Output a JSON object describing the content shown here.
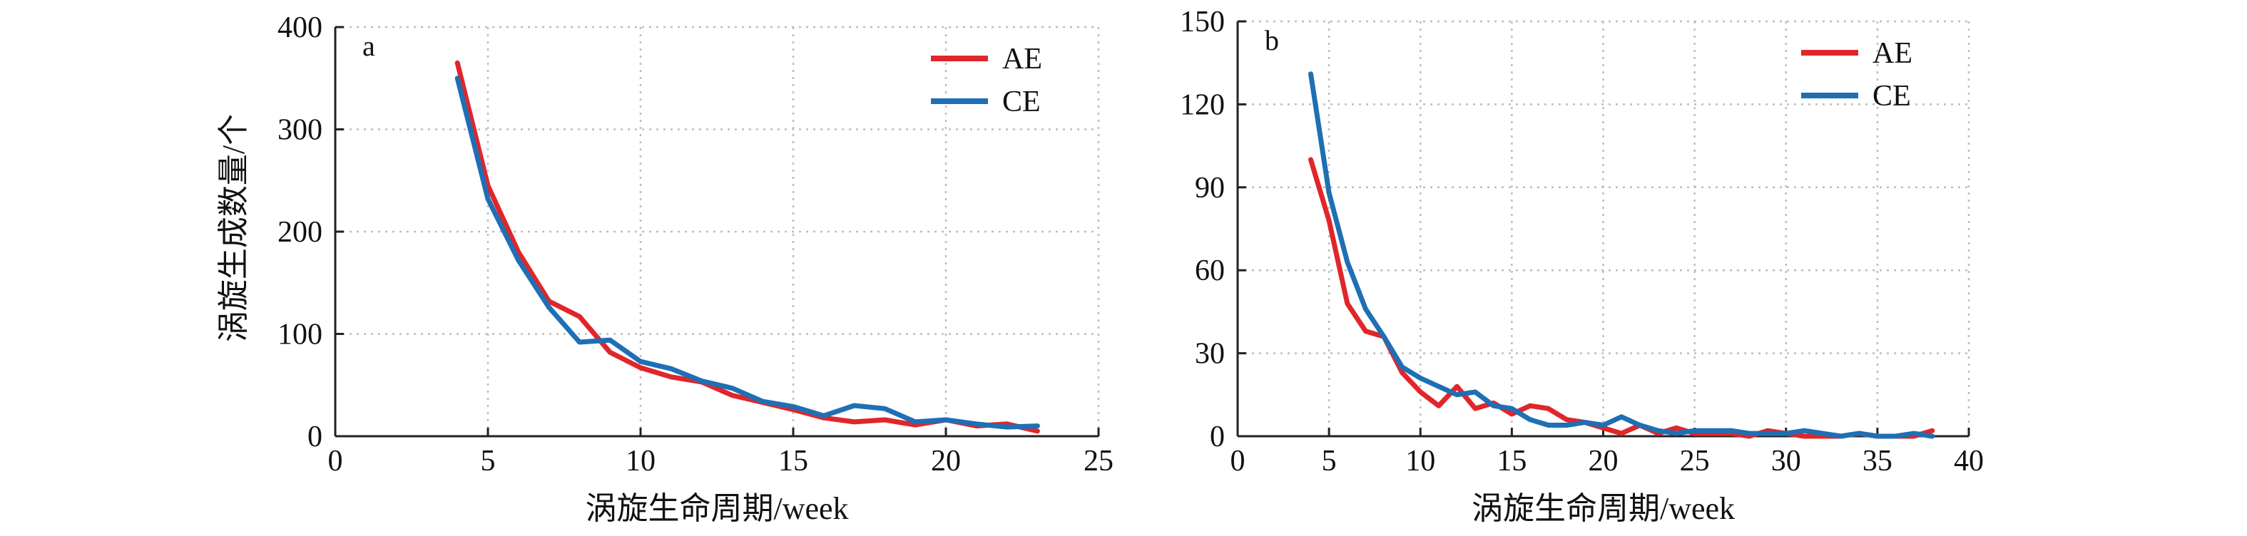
{
  "y_axis_title": "涡旋生成数量/个",
  "chart_data": [
    {
      "type": "line",
      "panel_label": "a",
      "xlabel": "涡旋生命周期/week",
      "xlim": [
        0,
        25
      ],
      "ylim": [
        0,
        400
      ],
      "xticks": [
        0,
        5,
        10,
        15,
        20,
        25
      ],
      "yticks": [
        0,
        100,
        200,
        300,
        400
      ],
      "grid": true,
      "legend_position": "top-right",
      "series": [
        {
          "name": "AE",
          "color": "#e0262a",
          "x": [
            4,
            5,
            6,
            7,
            8,
            9,
            10,
            11,
            12,
            13,
            14,
            15,
            16,
            17,
            18,
            19,
            20,
            21,
            22,
            23
          ],
          "y": [
            365,
            245,
            180,
            132,
            117,
            82,
            67,
            58,
            53,
            40,
            33,
            26,
            18,
            14,
            16,
            11,
            16,
            10,
            12,
            5
          ]
        },
        {
          "name": "CE",
          "color": "#1f6fb4",
          "x": [
            4,
            5,
            6,
            7,
            8,
            9,
            10,
            11,
            12,
            13,
            14,
            15,
            16,
            17,
            18,
            19,
            20,
            21,
            22,
            23
          ],
          "y": [
            350,
            232,
            172,
            126,
            92,
            94,
            73,
            66,
            54,
            47,
            34,
            29,
            20,
            30,
            27,
            14,
            16,
            12,
            9,
            10
          ]
        }
      ]
    },
    {
      "type": "line",
      "panel_label": "b",
      "xlabel": "涡旋生命周期/week",
      "xlim": [
        0,
        40
      ],
      "ylim": [
        0,
        150
      ],
      "xticks": [
        0,
        5,
        10,
        15,
        20,
        25,
        30,
        35,
        40
      ],
      "yticks": [
        0,
        30,
        60,
        90,
        120,
        150
      ],
      "grid": true,
      "legend_position": "top-right",
      "series": [
        {
          "name": "AE",
          "color": "#e0262a",
          "x": [
            4,
            5,
            6,
            7,
            8,
            9,
            10,
            11,
            12,
            13,
            14,
            15,
            16,
            17,
            18,
            19,
            20,
            21,
            22,
            23,
            24,
            25,
            26,
            27,
            28,
            29,
            30,
            31,
            32,
            33,
            34,
            35,
            36,
            37,
            38
          ],
          "y": [
            100,
            78,
            48,
            38,
            36,
            23,
            16,
            11,
            18,
            10,
            12,
            8,
            11,
            10,
            6,
            5,
            3,
            1,
            4,
            1,
            3,
            1,
            1,
            1,
            0,
            2,
            1,
            0,
            0,
            0,
            1,
            0,
            0,
            0,
            2
          ]
        },
        {
          "name": "CE",
          "color": "#1f6fb4",
          "x": [
            4,
            5,
            6,
            7,
            8,
            9,
            10,
            11,
            12,
            13,
            14,
            15,
            16,
            17,
            18,
            19,
            20,
            21,
            22,
            23,
            24,
            25,
            26,
            27,
            28,
            29,
            30,
            31,
            32,
            33,
            34,
            35,
            36,
            37,
            38
          ],
          "y": [
            131,
            88,
            63,
            46,
            36,
            25,
            21,
            18,
            15,
            16,
            11,
            10,
            6,
            4,
            4,
            5,
            4,
            7,
            4,
            2,
            1,
            2,
            2,
            2,
            1,
            1,
            1,
            2,
            1,
            0,
            1,
            0,
            0,
            1,
            0
          ]
        }
      ]
    }
  ]
}
